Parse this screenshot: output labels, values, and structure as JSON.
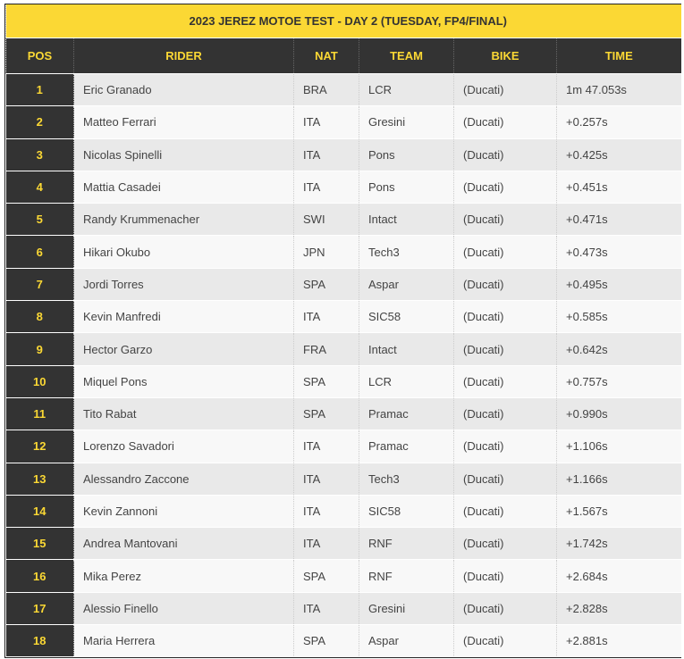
{
  "title": "2023 JEREZ MOTOE TEST - DAY 2 (TUESDAY, FP4/FINAL)",
  "headers": [
    "POS",
    "RIDER",
    "NAT",
    "TEAM",
    "BIKE",
    "TIME"
  ],
  "rows": [
    [
      "1",
      "Eric Granado",
      "BRA",
      "LCR",
      "(Ducati)",
      "1m 47.053s"
    ],
    [
      "2",
      "Matteo Ferrari",
      "ITA",
      "Gresini",
      "(Ducati)",
      "+0.257s"
    ],
    [
      "3",
      "Nicolas Spinelli",
      "ITA",
      "Pons",
      "(Ducati)",
      "+0.425s"
    ],
    [
      "4",
      "Mattia Casadei",
      "ITA",
      "Pons",
      "(Ducati)",
      "+0.451s"
    ],
    [
      "5",
      "Randy Krummenacher",
      "SWI",
      "Intact",
      "(Ducati)",
      "+0.471s"
    ],
    [
      "6",
      "Hikari Okubo",
      "JPN",
      "Tech3",
      "(Ducati)",
      "+0.473s"
    ],
    [
      "7",
      "Jordi Torres",
      "SPA",
      "Aspar",
      "(Ducati)",
      "+0.495s"
    ],
    [
      "8",
      "Kevin Manfredi",
      "ITA",
      "SIC58",
      "(Ducati)",
      "+0.585s"
    ],
    [
      "9",
      "Hector Garzo",
      "FRA",
      "Intact",
      "(Ducati)",
      "+0.642s"
    ],
    [
      "10",
      "Miquel Pons",
      "SPA",
      "LCR",
      "(Ducati)",
      "+0.757s"
    ],
    [
      "11",
      "Tito Rabat",
      "SPA",
      "Pramac",
      "(Ducati)",
      "+0.990s"
    ],
    [
      "12",
      "Lorenzo Savadori",
      "ITA",
      "Pramac",
      "(Ducati)",
      "+1.106s"
    ],
    [
      "13",
      "Alessandro Zaccone",
      "ITA",
      "Tech3",
      "(Ducati)",
      "+1.166s"
    ],
    [
      "14",
      "Kevin Zannoni",
      "ITA",
      "SIC58",
      "(Ducati)",
      "+1.567s"
    ],
    [
      "15",
      "Andrea Mantovani",
      "ITA",
      "RNF",
      "(Ducati)",
      "+1.742s"
    ],
    [
      "16",
      "Mika Perez",
      "SPA",
      "RNF",
      "(Ducati)",
      "+2.684s"
    ],
    [
      "17",
      "Alessio Finello",
      "ITA",
      "Gresini",
      "(Ducati)",
      "+2.828s"
    ],
    [
      "18",
      "Maria Herrera",
      "SPA",
      "Aspar",
      "(Ducati)",
      "+2.881s"
    ]
  ],
  "colors": {
    "accent": "#fbd834",
    "dark": "#333333"
  }
}
